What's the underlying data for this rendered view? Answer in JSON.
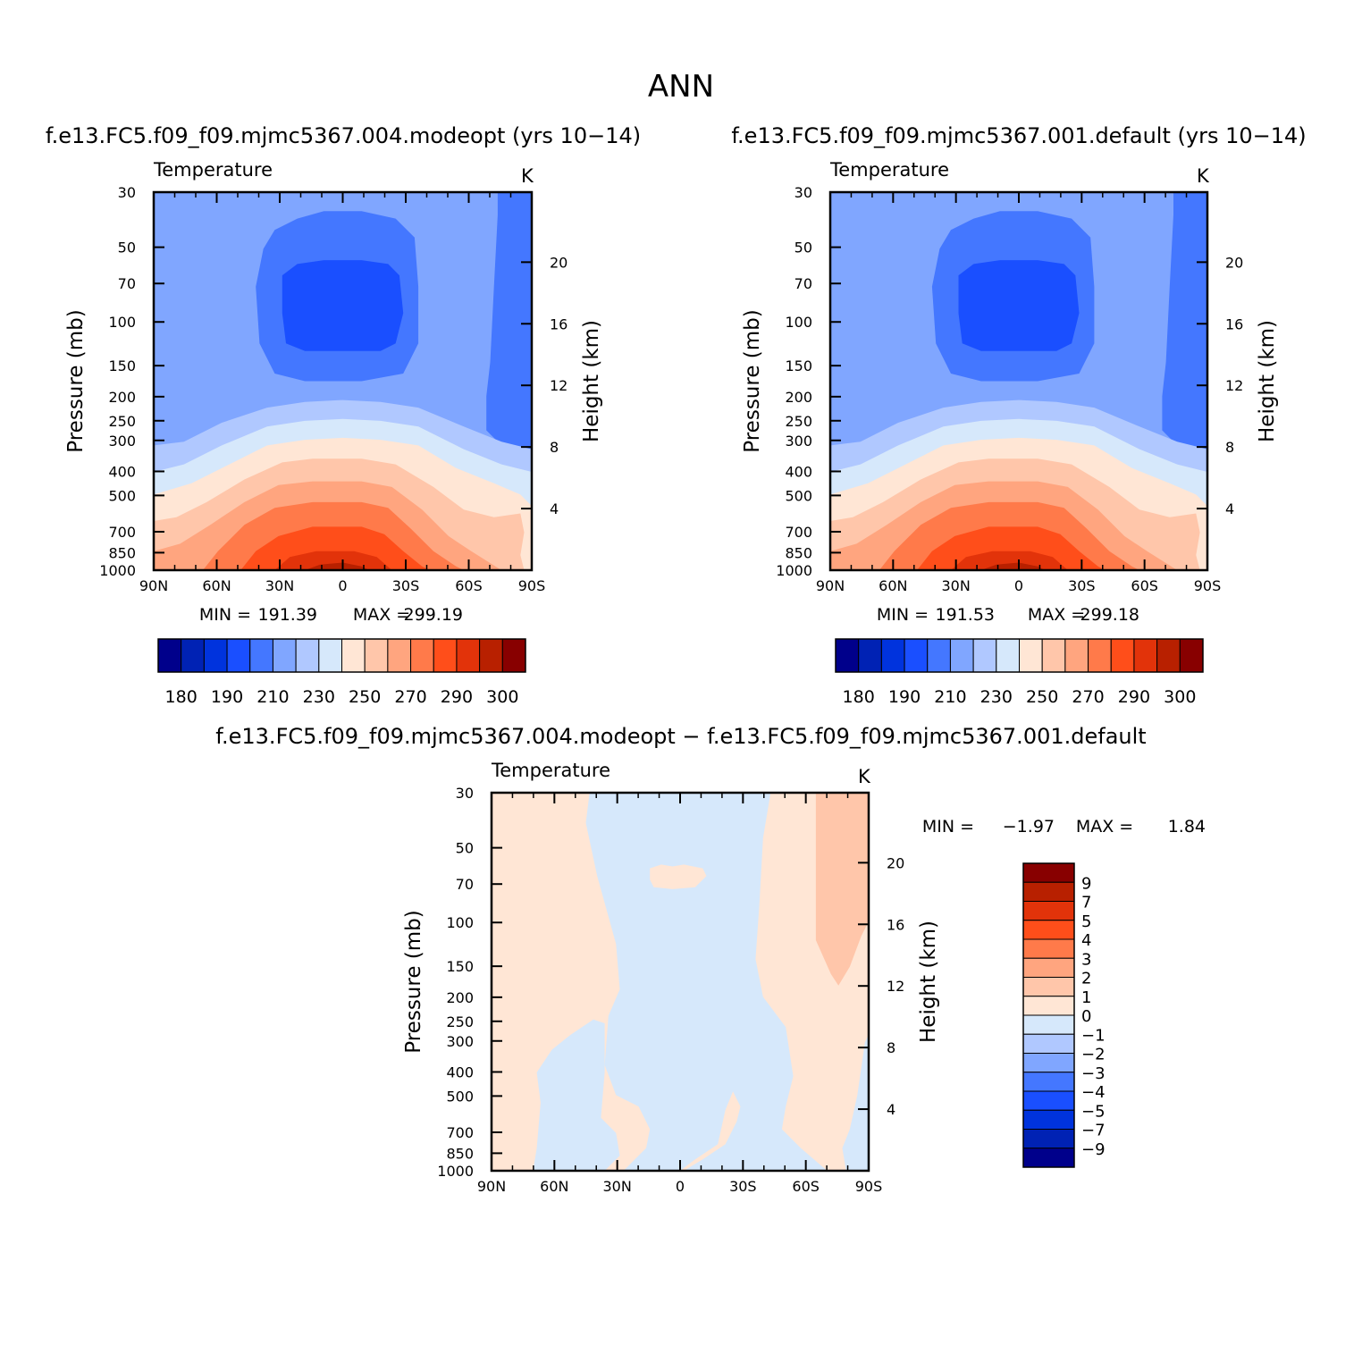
{
  "page_title": "ANN",
  "chart_data": [
    {
      "type": "contour",
      "title": "f.e13.FC5.f09_f09.mjmc5367.004.modeopt (yrs 10−14)",
      "variable": "Temperature",
      "units": "K",
      "ylabel": "Pressure (mb)",
      "y2label": "Height (km)",
      "x_ticks": [
        "90N",
        "60N",
        "30N",
        "0",
        "30S",
        "60S",
        "90S"
      ],
      "y_ticks": [
        "30",
        "50",
        "70",
        "100",
        "150",
        "200",
        "250",
        "300",
        "400",
        "500",
        "700",
        "850",
        "1000"
      ],
      "y2_ticks": [
        "20",
        "16",
        "12",
        "8",
        "4"
      ],
      "ylim": [
        1000,
        30
      ],
      "log_y": true,
      "min_label": "MIN =",
      "min_value": "191.39",
      "max_label": "MAX =",
      "max_value": "299.19",
      "min": 191.39,
      "max": 299.19,
      "colorbar_labels": [
        "180",
        "190",
        "210",
        "230",
        "250",
        "270",
        "290",
        "300"
      ],
      "levels": [
        180,
        185,
        190,
        200,
        210,
        220,
        230,
        240,
        250,
        260,
        270,
        280,
        290,
        295,
        300
      ]
    },
    {
      "type": "contour",
      "title": "f.e13.FC5.f09_f09.mjmc5367.001.default (yrs 10−14)",
      "variable": "Temperature",
      "units": "K",
      "ylabel": "Pressure (mb)",
      "y2label": "Height (km)",
      "x_ticks": [
        "90N",
        "60N",
        "30N",
        "0",
        "30S",
        "60S",
        "90S"
      ],
      "y_ticks": [
        "30",
        "50",
        "70",
        "100",
        "150",
        "200",
        "250",
        "300",
        "400",
        "500",
        "700",
        "850",
        "1000"
      ],
      "y2_ticks": [
        "20",
        "16",
        "12",
        "8",
        "4"
      ],
      "ylim": [
        1000,
        30
      ],
      "log_y": true,
      "min_label": "MIN =",
      "min_value": "191.53",
      "max_label": "MAX =",
      "max_value": "299.18",
      "min": 191.53,
      "max": 299.18,
      "colorbar_labels": [
        "180",
        "190",
        "210",
        "230",
        "250",
        "270",
        "290",
        "300"
      ],
      "levels": [
        180,
        185,
        190,
        200,
        210,
        220,
        230,
        240,
        250,
        260,
        270,
        280,
        290,
        295,
        300
      ]
    },
    {
      "type": "contour",
      "title": "f.e13.FC5.f09_f09.mjmc5367.004.modeopt − f.e13.FC5.f09_f09.mjmc5367.001.default",
      "variable": "Temperature",
      "units": "K",
      "ylabel": "Pressure (mb)",
      "y2label": "Height (km)",
      "x_ticks": [
        "90N",
        "60N",
        "30N",
        "0",
        "30S",
        "60S",
        "90S"
      ],
      "y_ticks": [
        "30",
        "50",
        "70",
        "100",
        "150",
        "200",
        "250",
        "300",
        "400",
        "500",
        "700",
        "850",
        "1000"
      ],
      "y2_ticks": [
        "20",
        "16",
        "12",
        "8",
        "4"
      ],
      "ylim": [
        1000,
        30
      ],
      "log_y": true,
      "min_label": "MIN =",
      "min_value": "−1.97",
      "max_label": "MAX =",
      "max_value": "1.84",
      "min": -1.97,
      "max": 1.84,
      "colorbar_labels": [
        "9",
        "7",
        "5",
        "4",
        "3",
        "2",
        "1",
        "0",
        "−1",
        "−2",
        "−3",
        "−4",
        "−5",
        "−7",
        "−9"
      ],
      "levels": [
        -9,
        -7,
        -5,
        -4,
        -3,
        -2,
        -1,
        0,
        1,
        2,
        3,
        4,
        5,
        7,
        9
      ]
    }
  ],
  "palette": [
    "#00008b",
    "#0022b4",
    "#0033dd",
    "#1a4fff",
    "#4477ff",
    "#80a6ff",
    "#b0c8ff",
    "#d6e8fb",
    "#ffe6d5",
    "#ffc6aa",
    "#ffa57f",
    "#ff7a4a",
    "#ff4e1a",
    "#e2330a",
    "#b82000",
    "#880000"
  ]
}
